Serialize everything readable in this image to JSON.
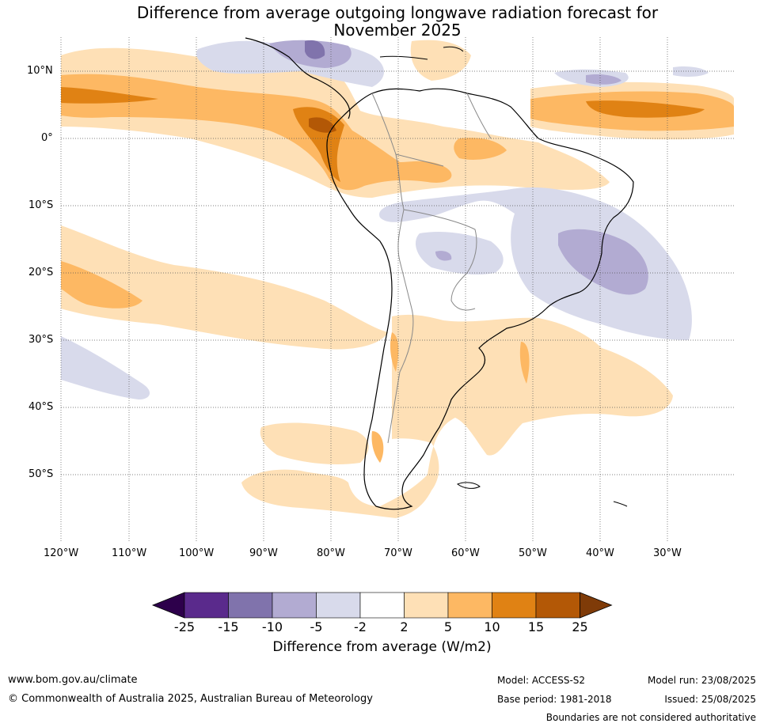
{
  "title_line1": "Difference from average outgoing longwave radiation forecast for",
  "title_line2": "November 2025",
  "lat_labels": [
    "10°N",
    "0°",
    "10°S",
    "20°S",
    "30°S",
    "40°S",
    "50°S"
  ],
  "lon_labels": [
    "120°W",
    "110°W",
    "100°W",
    "90°W",
    "80°W",
    "70°W",
    "60°W",
    "50°W",
    "40°W",
    "30°W"
  ],
  "colorbar": {
    "ticks": [
      "-25",
      "-15",
      "-10",
      "-5",
      "-2",
      "2",
      "5",
      "10",
      "15",
      "25"
    ],
    "colors": [
      "#2d004b",
      "#5a2a8c",
      "#8073ac",
      "#b2abd2",
      "#d8daeb",
      "#ffffff",
      "#fee0b6",
      "#fdb863",
      "#e08214",
      "#b35806",
      "#7f3b08"
    ],
    "label": "Difference from average (W/m2)"
  },
  "footer": {
    "website": "www.bom.gov.au/climate",
    "copyright": "© Commonwealth of Australia 2025, Australian Bureau of Meteorology",
    "model": "Model: ACCESS-S2",
    "base_period": "Base period: 1981-2018",
    "model_run": "Model run: 23/08/2025",
    "issued": "Issued: 25/08/2025",
    "disclaimer": "Boundaries are not considered authoritative"
  }
}
